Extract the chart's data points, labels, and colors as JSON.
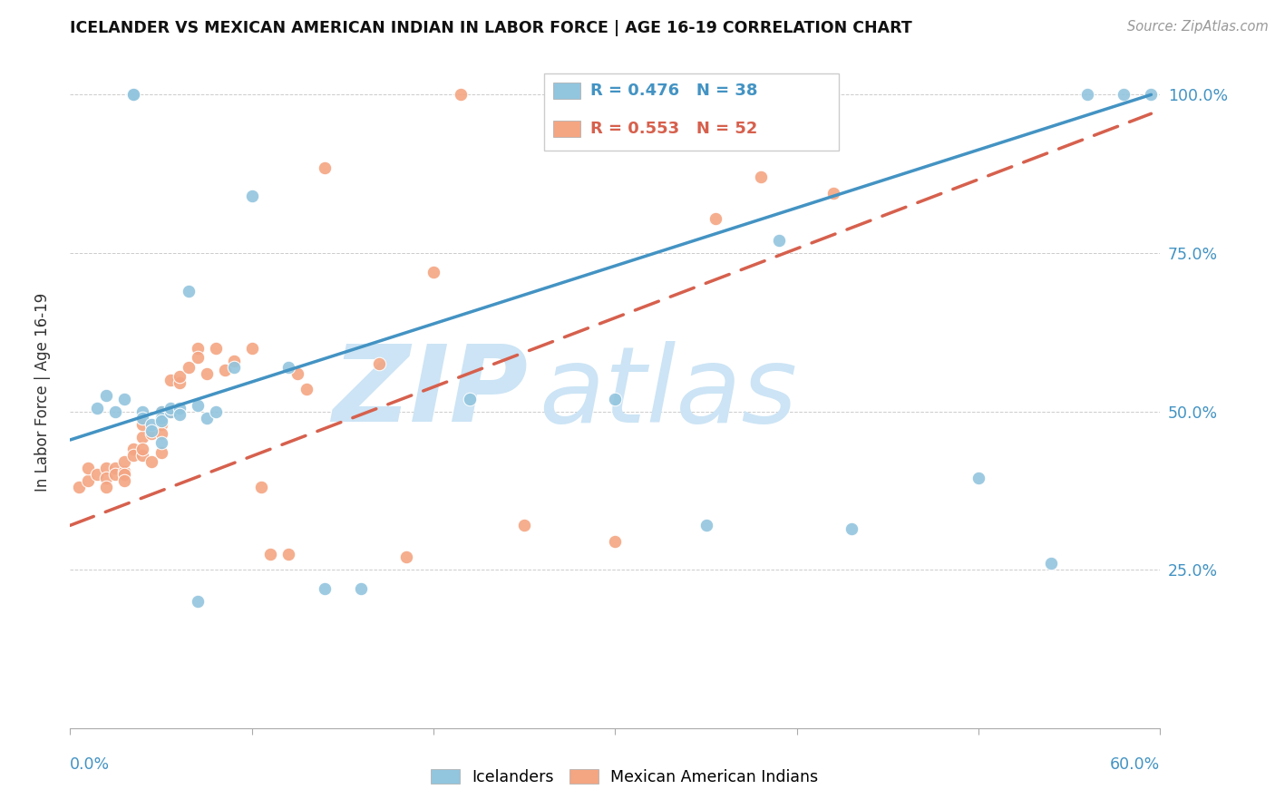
{
  "title": "ICELANDER VS MEXICAN AMERICAN INDIAN IN LABOR FORCE | AGE 16-19 CORRELATION CHART",
  "source": "Source: ZipAtlas.com",
  "ylabel": "In Labor Force | Age 16-19",
  "ylabel_right_ticks": [
    "100.0%",
    "75.0%",
    "50.0%",
    "25.0%"
  ],
  "ylabel_right_vals": [
    1.0,
    0.75,
    0.5,
    0.25
  ],
  "blue_color": "#92c5de",
  "pink_color": "#f4a582",
  "line_blue": "#4393c3",
  "line_pink": "#d6604d",
  "watermark_zip": "ZIP",
  "watermark_atlas": "atlas",
  "watermark_color": "#cce4f5",
  "xlim": [
    0.0,
    0.6
  ],
  "ylim": [
    0.0,
    1.06
  ],
  "blue_x": [
    0.015,
    0.02,
    0.025,
    0.03,
    0.035,
    0.035,
    0.04,
    0.04,
    0.045,
    0.045,
    0.05,
    0.05,
    0.05,
    0.05,
    0.055,
    0.055,
    0.06,
    0.06,
    0.065,
    0.07,
    0.07,
    0.075,
    0.08,
    0.09,
    0.1,
    0.12,
    0.14,
    0.16,
    0.22,
    0.3,
    0.35,
    0.39,
    0.43,
    0.5,
    0.54,
    0.56,
    0.58,
    0.595
  ],
  "blue_y": [
    0.505,
    0.525,
    0.5,
    0.52,
    1.0,
    1.0,
    0.5,
    0.49,
    0.48,
    0.47,
    0.5,
    0.49,
    0.485,
    0.45,
    0.5,
    0.505,
    0.505,
    0.495,
    0.69,
    0.51,
    0.2,
    0.49,
    0.5,
    0.57,
    0.84,
    0.57,
    0.22,
    0.22,
    0.52,
    0.52,
    0.32,
    0.77,
    0.315,
    0.395,
    0.26,
    1.0,
    1.0,
    1.0
  ],
  "pink_x": [
    0.005,
    0.01,
    0.01,
    0.015,
    0.02,
    0.02,
    0.02,
    0.025,
    0.025,
    0.03,
    0.03,
    0.03,
    0.03,
    0.035,
    0.035,
    0.04,
    0.04,
    0.04,
    0.04,
    0.045,
    0.045,
    0.05,
    0.05,
    0.05,
    0.05,
    0.055,
    0.055,
    0.06,
    0.06,
    0.065,
    0.07,
    0.07,
    0.075,
    0.08,
    0.085,
    0.09,
    0.1,
    0.105,
    0.11,
    0.12,
    0.125,
    0.13,
    0.14,
    0.17,
    0.185,
    0.2,
    0.215,
    0.25,
    0.3,
    0.355,
    0.38,
    0.42
  ],
  "pink_y": [
    0.38,
    0.39,
    0.41,
    0.4,
    0.41,
    0.395,
    0.38,
    0.41,
    0.4,
    0.405,
    0.42,
    0.4,
    0.39,
    0.44,
    0.43,
    0.46,
    0.43,
    0.44,
    0.48,
    0.465,
    0.42,
    0.48,
    0.5,
    0.465,
    0.435,
    0.55,
    0.5,
    0.545,
    0.555,
    0.57,
    0.6,
    0.585,
    0.56,
    0.6,
    0.565,
    0.58,
    0.6,
    0.38,
    0.275,
    0.275,
    0.56,
    0.535,
    0.885,
    0.575,
    0.27,
    0.72,
    1.0,
    0.32,
    0.295,
    0.805,
    0.87,
    0.845
  ],
  "blue_line_x0": 0.0,
  "blue_line_x1": 0.595,
  "blue_line_y0": 0.455,
  "blue_line_y1": 1.0,
  "pink_line_x0": 0.0,
  "pink_line_x1": 0.595,
  "pink_line_y0": 0.32,
  "pink_line_y1": 0.97
}
